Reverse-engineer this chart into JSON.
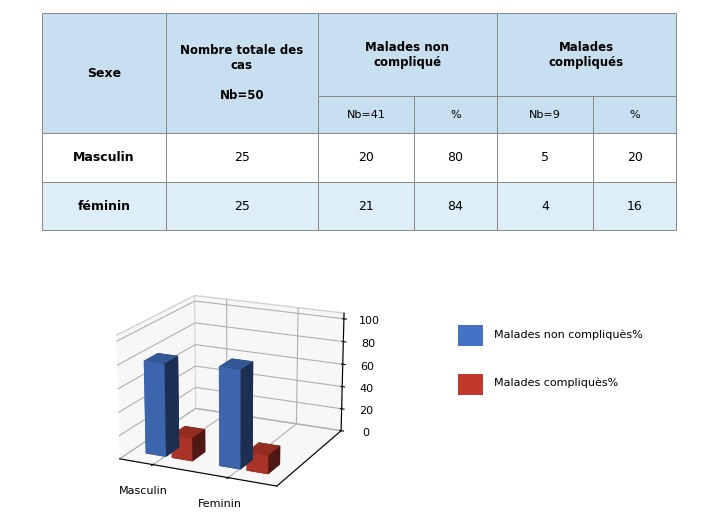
{
  "table": {
    "rows": [
      [
        "Masculin",
        "25",
        "20",
        "80",
        "5",
        "20"
      ],
      [
        "féminin",
        "25",
        "21",
        "84",
        "4",
        "16"
      ]
    ],
    "header_bg": "#c8dff0",
    "subheader_bg": "#c8dff0",
    "row0_bg": "#ffffff",
    "row1_bg": "#ddeef8",
    "border_color": "#888888"
  },
  "chart": {
    "categories": [
      "Masculin",
      "Feminin"
    ],
    "series": [
      {
        "name": "Malades non compliquès%",
        "values": [
          80,
          84
        ],
        "color": "#4472c4"
      },
      {
        "name": "Malades compliquès%",
        "values": [
          20,
          16
        ],
        "color": "#c0392b"
      }
    ],
    "yticks": [
      0,
      20,
      40,
      60,
      80,
      100
    ],
    "chart_bg": "#f2f2f2"
  },
  "fig_bg": "#ffffff"
}
